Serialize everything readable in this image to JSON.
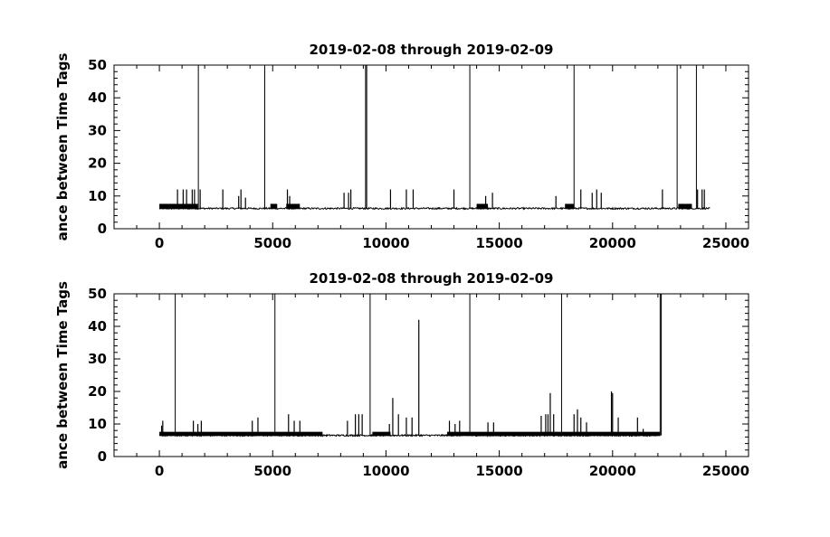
{
  "chart_data": [
    {
      "type": "line",
      "title": "2019-02-08 through 2019-02-09",
      "ylabel": "ance between Time Tags",
      "xlim": [
        -2000,
        26000
      ],
      "ylim": [
        0,
        50
      ],
      "xticks": [
        0,
        5000,
        10000,
        15000,
        20000,
        25000
      ],
      "yticks": [
        0,
        10,
        20,
        30,
        40,
        50
      ],
      "x_range": [
        0,
        24300
      ],
      "baseline": 6.2,
      "dense_bands": [
        {
          "x": [
            0,
            1700
          ],
          "y": 7.0
        },
        {
          "x": [
            4900,
            5200
          ],
          "y": 7.0
        },
        {
          "x": [
            5600,
            6200
          ],
          "y": 7.0
        },
        {
          "x": [
            14000,
            14500
          ],
          "y": 7.0
        },
        {
          "x": [
            17900,
            18300
          ],
          "y": 7.0
        },
        {
          "x": [
            22900,
            23500
          ],
          "y": 7.0
        }
      ],
      "spikes": [
        {
          "x": 800,
          "y": 12
        },
        {
          "x": 1050,
          "y": 12
        },
        {
          "x": 1200,
          "y": 12
        },
        {
          "x": 1450,
          "y": 12
        },
        {
          "x": 1550,
          "y": 12
        },
        {
          "x": 1720,
          "y": 50
        },
        {
          "x": 1800,
          "y": 12
        },
        {
          "x": 2800,
          "y": 12
        },
        {
          "x": 3500,
          "y": 10
        },
        {
          "x": 3600,
          "y": 12
        },
        {
          "x": 3800,
          "y": 9.5
        },
        {
          "x": 4650,
          "y": 50
        },
        {
          "x": 5650,
          "y": 12
        },
        {
          "x": 5750,
          "y": 10
        },
        {
          "x": 8150,
          "y": 11
        },
        {
          "x": 8350,
          "y": 11
        },
        {
          "x": 8450,
          "y": 12
        },
        {
          "x": 9100,
          "y": 50
        },
        {
          "x": 9150,
          "y": 50
        },
        {
          "x": 10200,
          "y": 12
        },
        {
          "x": 10900,
          "y": 12
        },
        {
          "x": 11200,
          "y": 12
        },
        {
          "x": 13000,
          "y": 12
        },
        {
          "x": 13700,
          "y": 50
        },
        {
          "x": 14400,
          "y": 10
        },
        {
          "x": 14700,
          "y": 11
        },
        {
          "x": 17500,
          "y": 10
        },
        {
          "x": 18300,
          "y": 50
        },
        {
          "x": 18600,
          "y": 12
        },
        {
          "x": 19100,
          "y": 11
        },
        {
          "x": 19300,
          "y": 12
        },
        {
          "x": 19500,
          "y": 11
        },
        {
          "x": 22200,
          "y": 12
        },
        {
          "x": 22850,
          "y": 50
        },
        {
          "x": 23700,
          "y": 50
        },
        {
          "x": 23750,
          "y": 12
        },
        {
          "x": 23950,
          "y": 12
        },
        {
          "x": 24050,
          "y": 12
        }
      ]
    },
    {
      "type": "line",
      "title": "2019-02-08 through 2019-02-09",
      "ylabel": "ance between Time Tags",
      "xlim": [
        -2000,
        26000
      ],
      "ylim": [
        0,
        50
      ],
      "xticks": [
        0,
        5000,
        10000,
        15000,
        20000,
        25000
      ],
      "yticks": [
        0,
        10,
        20,
        30,
        40,
        50
      ],
      "x_range": [
        0,
        22100
      ],
      "baseline": 6.5,
      "dense_bands": [
        {
          "x": [
            0,
            7200
          ],
          "y": 7.0
        },
        {
          "x": [
            9400,
            10200
          ],
          "y": 7.0
        },
        {
          "x": [
            12700,
            22100
          ],
          "y": 7.0
        }
      ],
      "spikes": [
        {
          "x": 100,
          "y": 9.5
        },
        {
          "x": 150,
          "y": 11
        },
        {
          "x": 700,
          "y": 50
        },
        {
          "x": 1500,
          "y": 11
        },
        {
          "x": 1700,
          "y": 10
        },
        {
          "x": 1850,
          "y": 11
        },
        {
          "x": 4100,
          "y": 11
        },
        {
          "x": 4350,
          "y": 12
        },
        {
          "x": 5100,
          "y": 50
        },
        {
          "x": 5700,
          "y": 13
        },
        {
          "x": 5950,
          "y": 11
        },
        {
          "x": 6200,
          "y": 11
        },
        {
          "x": 8300,
          "y": 11
        },
        {
          "x": 8650,
          "y": 13
        },
        {
          "x": 8800,
          "y": 13
        },
        {
          "x": 8950,
          "y": 13
        },
        {
          "x": 9300,
          "y": 50
        },
        {
          "x": 10150,
          "y": 10
        },
        {
          "x": 10300,
          "y": 18
        },
        {
          "x": 10550,
          "y": 13
        },
        {
          "x": 10900,
          "y": 12
        },
        {
          "x": 11150,
          "y": 12
        },
        {
          "x": 11450,
          "y": 42
        },
        {
          "x": 12800,
          "y": 11
        },
        {
          "x": 13050,
          "y": 10
        },
        {
          "x": 13250,
          "y": 11
        },
        {
          "x": 13700,
          "y": 50
        },
        {
          "x": 14500,
          "y": 10.5
        },
        {
          "x": 14750,
          "y": 10.5
        },
        {
          "x": 16850,
          "y": 12.5
        },
        {
          "x": 17050,
          "y": 13
        },
        {
          "x": 17150,
          "y": 13
        },
        {
          "x": 17250,
          "y": 19.5
        },
        {
          "x": 17400,
          "y": 13
        },
        {
          "x": 17750,
          "y": 50
        },
        {
          "x": 18300,
          "y": 13
        },
        {
          "x": 18450,
          "y": 14.5
        },
        {
          "x": 18600,
          "y": 12
        },
        {
          "x": 18850,
          "y": 10.5
        },
        {
          "x": 19950,
          "y": 20
        },
        {
          "x": 20000,
          "y": 19.5
        },
        {
          "x": 20250,
          "y": 12
        },
        {
          "x": 21100,
          "y": 12
        },
        {
          "x": 21350,
          "y": 8.5
        },
        {
          "x": 22100,
          "y": 50
        },
        {
          "x": 22150,
          "y": 50
        }
      ]
    }
  ]
}
